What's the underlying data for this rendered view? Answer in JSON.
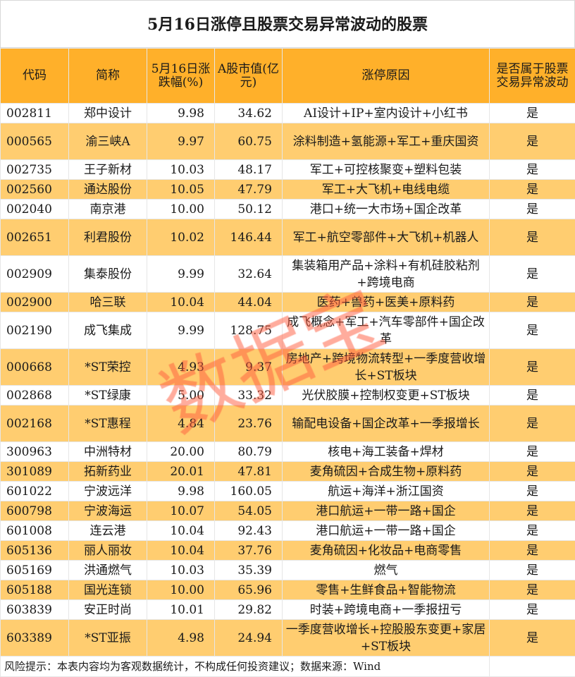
{
  "title": "5月16日涨停且股票交易异常波动的股票",
  "headers": [
    "代码",
    "简称",
    "5月16日涨跌幅(%)",
    "A股市值(亿元)",
    "涨停原因",
    "是否属于股票交易异常波动"
  ],
  "rows": [
    {
      "code": "002811",
      "name": "郑中设计",
      "change": "9.98",
      "cap": "34.62",
      "reason": "AI设计+IP+室内设计+小红书",
      "abnormal": "是"
    },
    {
      "code": "000565",
      "name": "渝三峡A",
      "change": "9.97",
      "cap": "60.75",
      "reason": "涂料制造+氢能源+军工+重庆国资",
      "abnormal": "是"
    },
    {
      "code": "002735",
      "name": "王子新材",
      "change": "10.03",
      "cap": "48.17",
      "reason": "军工+可控核聚变+塑料包装",
      "abnormal": "是"
    },
    {
      "code": "002560",
      "name": "通达股份",
      "change": "10.05",
      "cap": "47.79",
      "reason": "军工+大飞机+电线电缆",
      "abnormal": "是"
    },
    {
      "code": "002040",
      "name": "南京港",
      "change": "10.00",
      "cap": "50.12",
      "reason": "港口+统一大市场+国企改革",
      "abnormal": "是"
    },
    {
      "code": "002651",
      "name": "利君股份",
      "change": "10.02",
      "cap": "146.44",
      "reason": "军工+航空零部件+大飞机+机器人",
      "abnormal": "是"
    },
    {
      "code": "002909",
      "name": "集泰股份",
      "change": "9.99",
      "cap": "32.64",
      "reason": "集装箱用产品+涂料+有机硅胶粘剂+跨境电商",
      "abnormal": "是"
    },
    {
      "code": "002900",
      "name": "哈三联",
      "change": "10.04",
      "cap": "44.04",
      "reason": "医药+兽药+医美+原料药",
      "abnormal": "是"
    },
    {
      "code": "002190",
      "name": "成飞集成",
      "change": "9.99",
      "cap": "128.75",
      "reason": "成飞概念+军工+汽车零部件+国企改革",
      "abnormal": "是"
    },
    {
      "code": "000668",
      "name": "*ST荣控",
      "change": "4.93",
      "cap": "9.37",
      "reason": "房地产+跨境物流转型+一季度营收增长+ST板块",
      "abnormal": "是"
    },
    {
      "code": "002868",
      "name": "*ST绿康",
      "change": "5.00",
      "cap": "33.32",
      "reason": "光伏胶膜+控制权变更+ST板块",
      "abnormal": "是"
    },
    {
      "code": "002168",
      "name": "*ST惠程",
      "change": "4.84",
      "cap": "23.76",
      "reason": "输配电设备+国企改革+一季报增长",
      "abnormal": "是"
    },
    {
      "code": "300963",
      "name": "中洲特材",
      "change": "20.00",
      "cap": "80.79",
      "reason": "核电+海工装备+焊材",
      "abnormal": "是"
    },
    {
      "code": "301089",
      "name": "拓新药业",
      "change": "20.01",
      "cap": "47.81",
      "reason": "麦角硫因+合成生物+原料药",
      "abnormal": "是"
    },
    {
      "code": "601022",
      "name": "宁波远洋",
      "change": "9.98",
      "cap": "160.05",
      "reason": "航运+海洋+浙江国资",
      "abnormal": "是"
    },
    {
      "code": "600798",
      "name": "宁波海运",
      "change": "10.07",
      "cap": "54.05",
      "reason": "港口航运+一带一路+国企",
      "abnormal": "是"
    },
    {
      "code": "601008",
      "name": "连云港",
      "change": "10.04",
      "cap": "92.43",
      "reason": "港口航运+一带一路+国企",
      "abnormal": "是"
    },
    {
      "code": "605136",
      "name": "丽人丽妆",
      "change": "10.04",
      "cap": "37.76",
      "reason": "麦角硫因+化妆品+电商零售",
      "abnormal": "是"
    },
    {
      "code": "605169",
      "name": "洪通燃气",
      "change": "10.03",
      "cap": "35.39",
      "reason": "燃气",
      "abnormal": "是"
    },
    {
      "code": "605188",
      "name": "国光连锁",
      "change": "10.00",
      "cap": "65.96",
      "reason": "零售+生鲜食品+智能物流",
      "abnormal": "是"
    },
    {
      "code": "603839",
      "name": "安正时尚",
      "change": "10.01",
      "cap": "29.82",
      "reason": "时装+跨境电商+一季报扭亏",
      "abnormal": "是"
    },
    {
      "code": "603389",
      "name": "*ST亚振",
      "change": "4.98",
      "cap": "24.94",
      "reason": "一季度营收增长+控股股东变更+家居+ST板块",
      "abnormal": "是"
    }
  ],
  "footer": "风险提示：本表内容均为客观数据统计，不构成任何投资建议；数据来源：Wind",
  "watermark": "数据宝",
  "colors": {
    "header": "#FFB02A",
    "alt_row": "#FFCD70",
    "watermark": "#FF5A3C"
  }
}
